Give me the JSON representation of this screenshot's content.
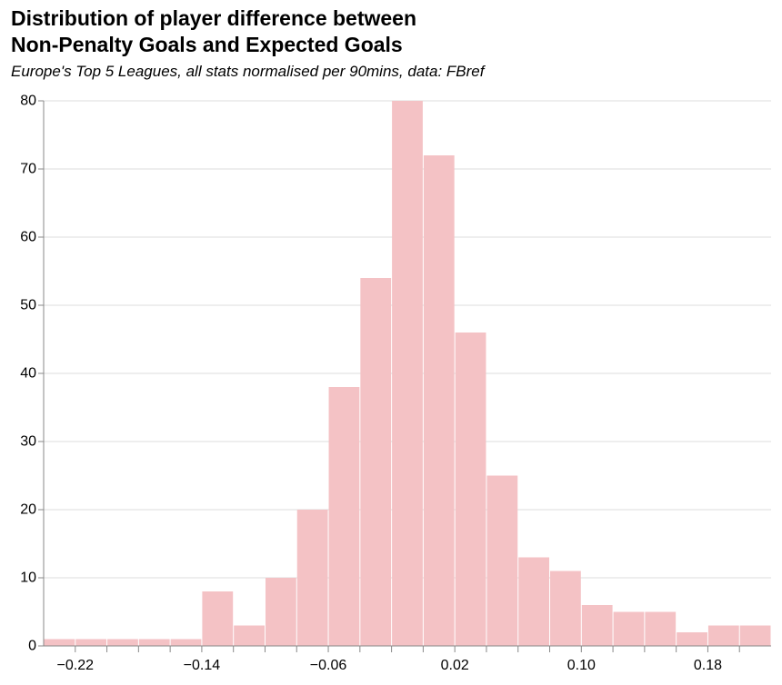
{
  "chart_data": {
    "type": "bar",
    "title": [
      "Distribution of player difference between",
      "Non-Penalty Goals and Expected Goals"
    ],
    "subtitle": "Europe's Top 5 Leagues, all stats normalised per 90mins, data: FBref",
    "xlabel": "",
    "ylabel": "",
    "bin_width": 0.02,
    "bins_start": [
      -0.24,
      -0.22,
      -0.2,
      -0.18,
      -0.16,
      -0.14,
      -0.12,
      -0.1,
      -0.08,
      -0.06,
      -0.04,
      -0.02,
      0.0,
      0.02,
      0.04,
      0.06,
      0.08,
      0.1,
      0.12,
      0.14,
      0.16,
      0.18,
      0.2,
      0.22
    ],
    "values": [
      1,
      1,
      1,
      1,
      1,
      8,
      3,
      10,
      20,
      38,
      54,
      80,
      72,
      46,
      25,
      13,
      11,
      6,
      5,
      5,
      2,
      3,
      3
    ],
    "xlim": [
      -0.24,
      0.22
    ],
    "ylim": [
      0,
      80
    ],
    "x_ticks": [
      -0.22,
      -0.14,
      -0.06,
      0.02,
      0.1,
      0.18
    ],
    "x_tick_labels": [
      "−0.22",
      "−0.14",
      "−0.06",
      "0.02",
      "0.10",
      "0.18"
    ],
    "x_minor_ticks": [
      -0.2,
      -0.18,
      -0.16,
      -0.12,
      -0.1,
      -0.08,
      -0.04,
      -0.02,
      0.0,
      0.04,
      0.06,
      0.08,
      0.12,
      0.14,
      0.16,
      0.2
    ],
    "y_ticks": [
      0,
      10,
      20,
      30,
      40,
      50,
      60,
      70,
      80
    ],
    "y_tick_labels": [
      "0",
      "10",
      "20",
      "30",
      "40",
      "50",
      "60",
      "70",
      "80"
    ],
    "grid": true,
    "colors": {
      "bar": "#f4c2c5",
      "grid": "#dddddd",
      "axis": "#888888",
      "text": "#000000"
    }
  }
}
